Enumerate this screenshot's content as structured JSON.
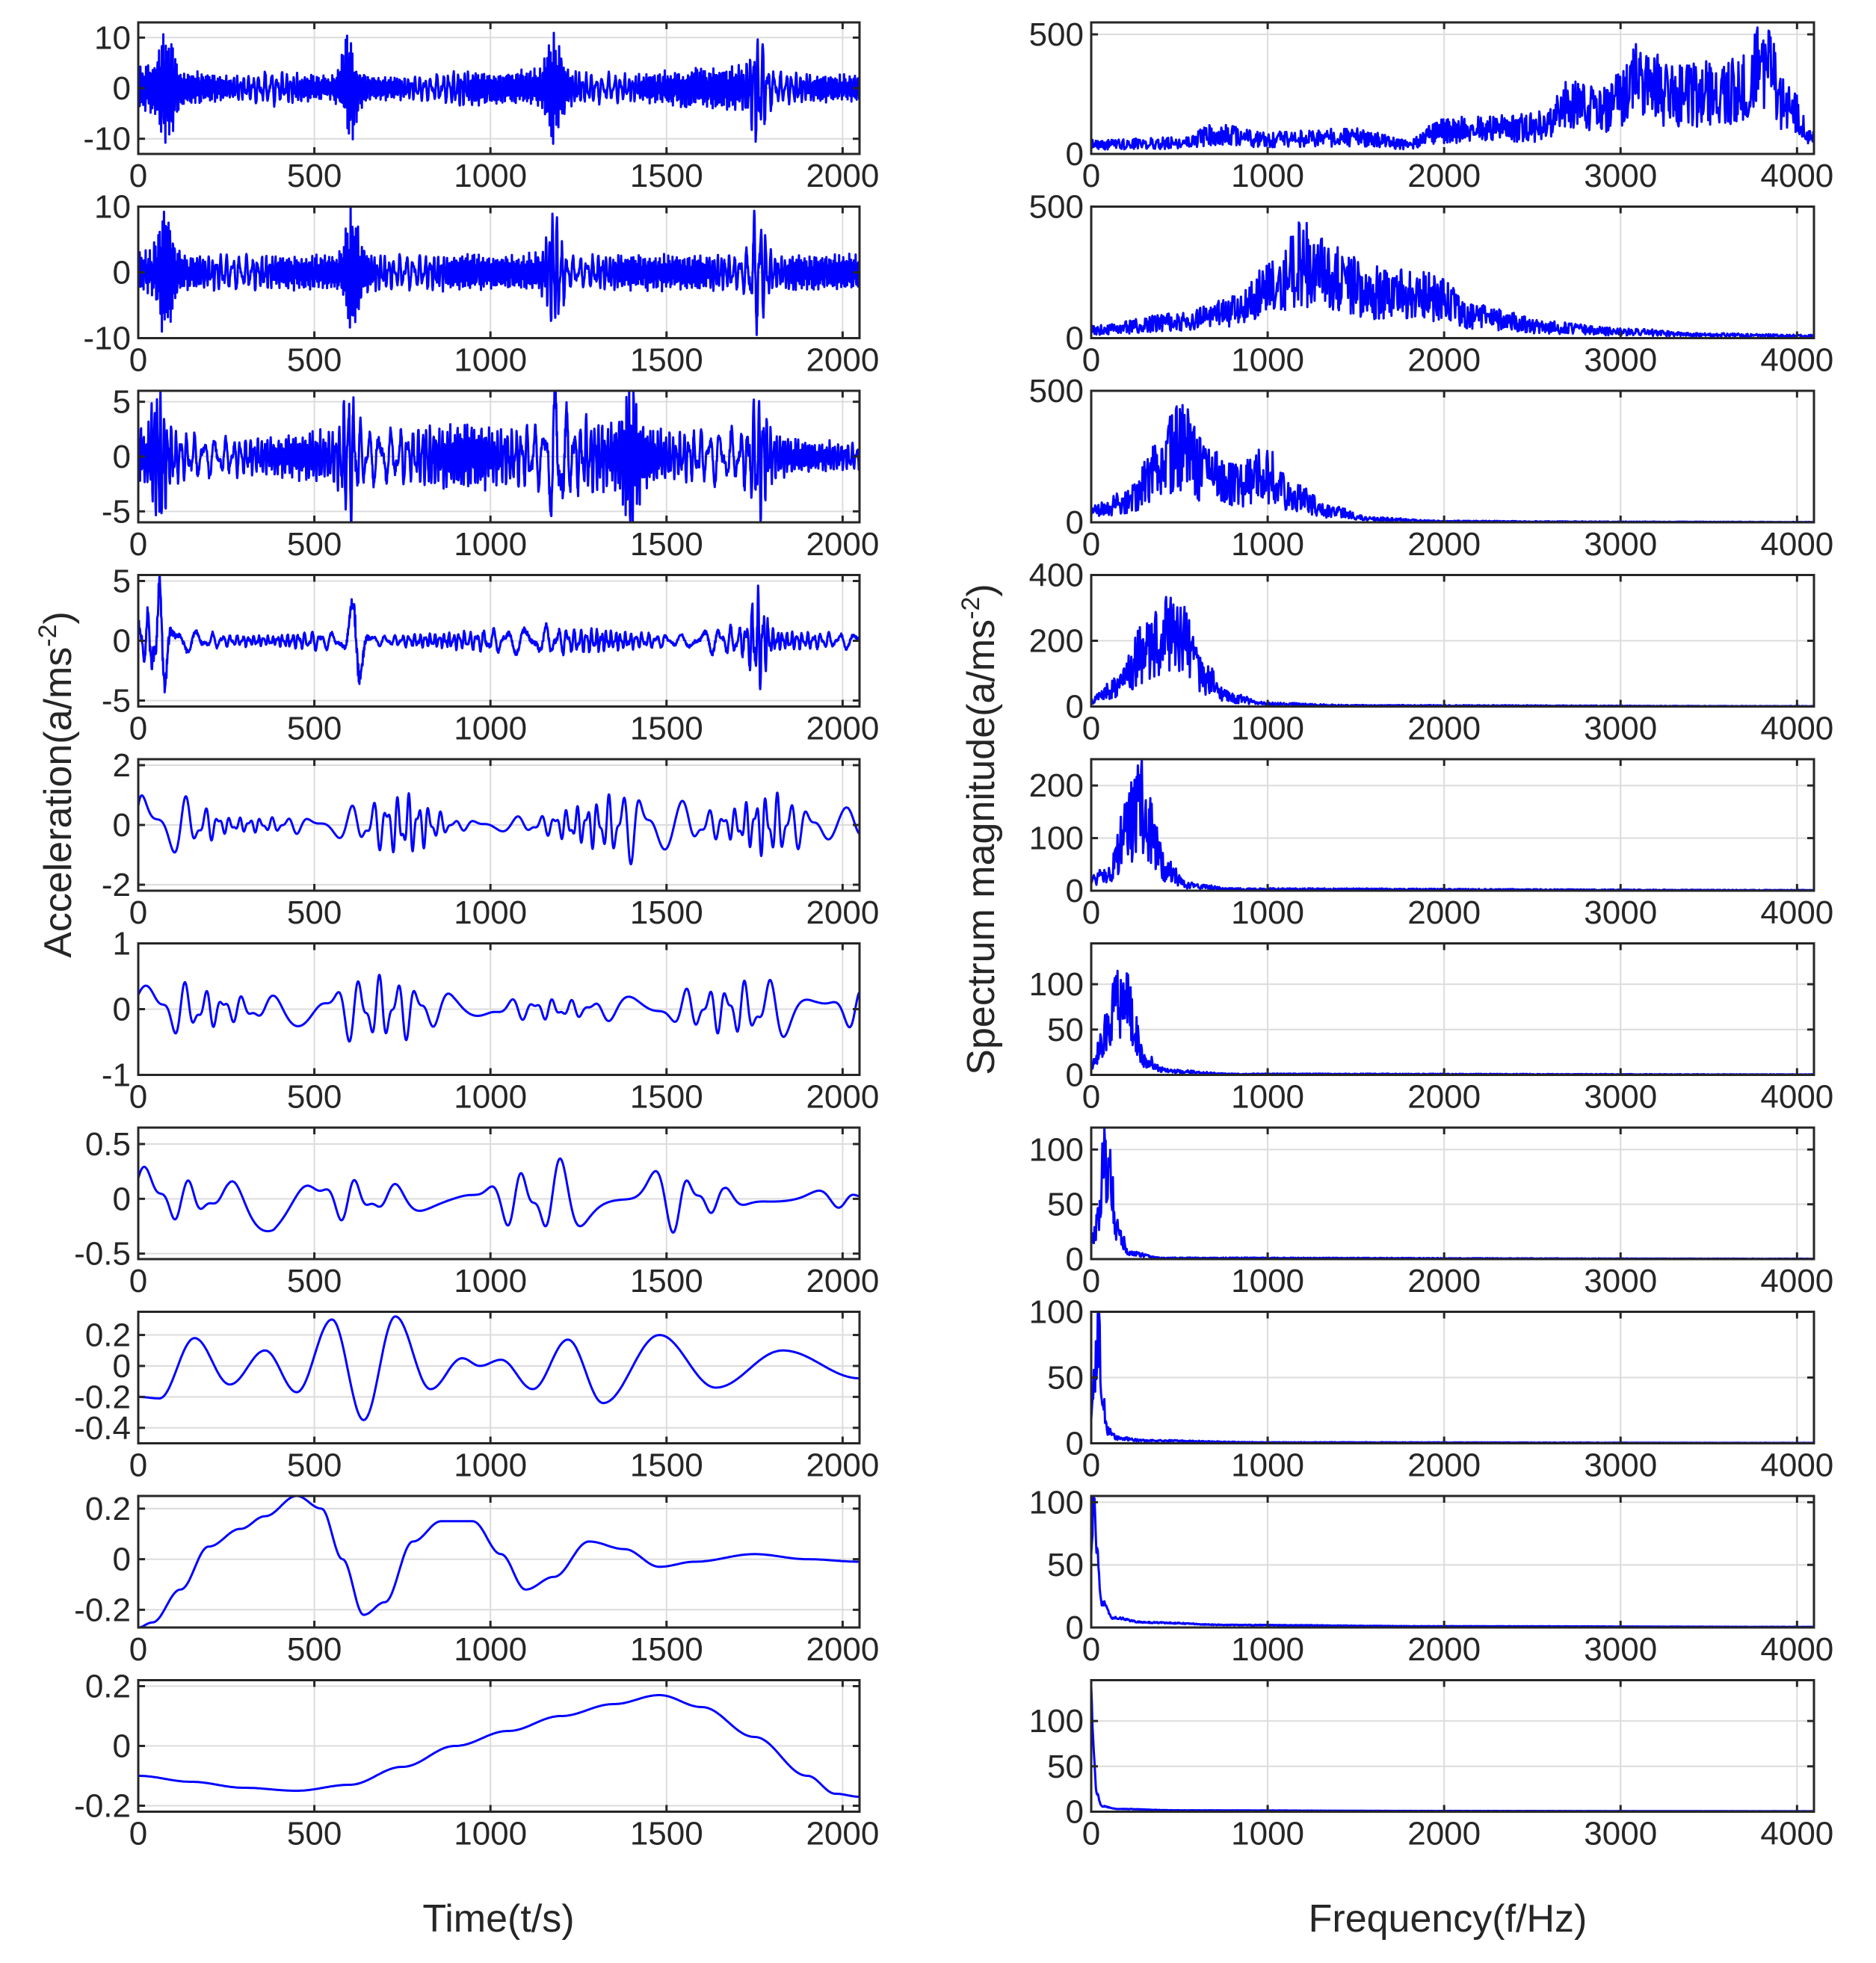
{
  "figure": {
    "left_ylabel": "Acceleration(a/ms",
    "left_ylabel_sup": "-2",
    "left_ylabel_tail": ")",
    "right_ylabel": "Spectrum magnitude(a/ms",
    "right_ylabel_sup": "-2",
    "right_ylabel_tail": ")",
    "left_xlabel": "Time(t/s)",
    "right_xlabel": "Frequency(f/Hz)",
    "line_color": "#0000ff",
    "grid": true
  },
  "chart_data": [
    {
      "type": "line",
      "column": "time",
      "row": 1,
      "xlim": [
        0,
        2048
      ],
      "ylim": [
        -13,
        13
      ],
      "yticks": [
        -10,
        0,
        10
      ],
      "xticks": [
        0,
        500,
        1000,
        1500,
        2000
      ],
      "amp": [
        6,
        4,
        2.5,
        4,
        2.5,
        3,
        2.5,
        4,
        3.5,
        4,
        3.5,
        3,
        4,
        5,
        4,
        3
      ],
      "burst_center": [
        80,
        600,
        1180,
        1760
      ],
      "burst_amp": 9.5,
      "freq": 0.22
    },
    {
      "type": "line",
      "column": "time",
      "row": 2,
      "xlim": [
        0,
        2048
      ],
      "ylim": [
        -10,
        10
      ],
      "yticks": [
        -10,
        0,
        10
      ],
      "xticks": [
        0,
        500,
        1000,
        1500,
        2000
      ],
      "amp": [
        4,
        3,
        3,
        3,
        3,
        3,
        3,
        3,
        3,
        3,
        3,
        3,
        3,
        3,
        3,
        3
      ],
      "burst_center": [
        80,
        610,
        1180,
        1760
      ],
      "burst_amp": 8.5,
      "freq": 0.2
    },
    {
      "type": "line",
      "column": "time",
      "row": 3,
      "xlim": [
        0,
        2048
      ],
      "ylim": [
        -6,
        6
      ],
      "yticks": [
        -5,
        0,
        5
      ],
      "xticks": [
        0,
        500,
        1000,
        1500,
        2000
      ],
      "amp": [
        3,
        2.5,
        2,
        2,
        2.5,
        3,
        3,
        3.5,
        3,
        3.5,
        4,
        3,
        2.5,
        3,
        2.5,
        1.5
      ],
      "burst_center": [
        60,
        600,
        1190,
        1400,
        1760
      ],
      "burst_amp": 5,
      "freq": 0.12
    },
    {
      "type": "line",
      "column": "time",
      "row": 4,
      "xlim": [
        0,
        2048
      ],
      "ylim": [
        -5.5,
        5.5
      ],
      "yticks": [
        -5,
        0,
        5
      ],
      "xticks": [
        0,
        500,
        1000,
        1500,
        2000
      ],
      "amp": [
        2.5,
        1.2,
        0.6,
        0.5,
        1,
        0.5,
        0.6,
        0.8,
        1.2,
        1.5,
        1.2,
        0.8,
        0.6,
        1.5,
        1,
        0.8
      ],
      "burst_center": [
        60,
        620,
        1760
      ],
      "burst_amp": 4.5,
      "freq": 0.06
    },
    {
      "type": "line",
      "column": "time",
      "row": 5,
      "xlim": [
        0,
        2048
      ],
      "ylim": [
        -2.2,
        2.2
      ],
      "yticks": [
        -2,
        0,
        2
      ],
      "xticks": [
        0,
        500,
        1000,
        1500,
        2000
      ],
      "amp": [
        1.9,
        1.2,
        0.3,
        0.3,
        0.4,
        0.9,
        1.3,
        0.2,
        0.3,
        0.4,
        0.9,
        1.6,
        1,
        0.5,
        1.4,
        0.7
      ],
      "burst_center": [],
      "burst_amp": 0,
      "freq": 0.028
    },
    {
      "type": "line",
      "column": "time",
      "row": 6,
      "xlim": [
        0,
        2048
      ],
      "ylim": [
        -1,
        1
      ],
      "yticks": [
        -1,
        0,
        1
      ],
      "xticks": [
        0,
        500,
        1000,
        1500,
        2000
      ],
      "amp": [
        0.7,
        0.5,
        0.25,
        0.25,
        0.45,
        0.65,
        0.55,
        0.25,
        0.2,
        0.2,
        0.15,
        0.3,
        0.35,
        0.45,
        0.6,
        0.35
      ],
      "burst_center": [],
      "burst_amp": 0,
      "freq": 0.016
    },
    {
      "type": "line",
      "column": "time",
      "row": 7,
      "xlim": [
        0,
        2048
      ],
      "ylim": [
        -0.55,
        0.65
      ],
      "yticks": [
        -0.5,
        0,
        0.5
      ],
      "xticks": [
        0,
        500,
        1000,
        1500,
        2000
      ],
      "amp": [
        0.6,
        0.2,
        0.2,
        0.4,
        0.3,
        0.2,
        0.15,
        0.15,
        0.25,
        0.45,
        0.4,
        0.45,
        0.35,
        0.12,
        0.12,
        0.1
      ],
      "burst_center": [],
      "burst_amp": 0,
      "freq": 0.0085
    },
    {
      "type": "line",
      "column": "time",
      "row": 8,
      "xlim": [
        0,
        2048
      ],
      "ylim": [
        -0.5,
        0.35
      ],
      "yticks": [
        -0.4,
        -0.2,
        0,
        0.2
      ],
      "ytick_labels": [
        "-0.4",
        "-0.2",
        "0",
        "0.2"
      ],
      "xticks": [
        0,
        500,
        1000,
        1500,
        2000
      ],
      "points": [
        [
          0,
          -0.2
        ],
        [
          60,
          -0.21
        ],
        [
          160,
          0.18
        ],
        [
          260,
          -0.12
        ],
        [
          360,
          0.1
        ],
        [
          450,
          -0.17
        ],
        [
          550,
          0.3
        ],
        [
          640,
          -0.35
        ],
        [
          730,
          0.32
        ],
        [
          830,
          -0.15
        ],
        [
          920,
          0.05
        ],
        [
          970,
          0.0
        ],
        [
          1030,
          0.04
        ],
        [
          1120,
          -0.15
        ],
        [
          1220,
          0.17
        ],
        [
          1320,
          -0.24
        ],
        [
          1480,
          0.2
        ],
        [
          1640,
          -0.14
        ],
        [
          1830,
          0.1
        ],
        [
          2048,
          -0.08
        ]
      ]
    },
    {
      "type": "line",
      "column": "time",
      "row": 9,
      "xlim": [
        0,
        2048
      ],
      "ylim": [
        -0.27,
        0.25
      ],
      "yticks": [
        -0.2,
        0,
        0.2
      ],
      "xticks": [
        0,
        500,
        1000,
        1500,
        2000
      ],
      "points": [
        [
          0,
          -0.27
        ],
        [
          40,
          -0.25
        ],
        [
          120,
          -0.12
        ],
        [
          200,
          0.05
        ],
        [
          290,
          0.12
        ],
        [
          360,
          0.17
        ],
        [
          450,
          0.25
        ],
        [
          520,
          0.2
        ],
        [
          580,
          0.0
        ],
        [
          640,
          -0.22
        ],
        [
          700,
          -0.17
        ],
        [
          780,
          0.07
        ],
        [
          860,
          0.15
        ],
        [
          950,
          0.15
        ],
        [
          1030,
          0.02
        ],
        [
          1100,
          -0.12
        ],
        [
          1180,
          -0.07
        ],
        [
          1280,
          0.07
        ],
        [
          1380,
          0.04
        ],
        [
          1480,
          -0.03
        ],
        [
          1580,
          -0.01
        ],
        [
          1750,
          0.02
        ],
        [
          1900,
          0.0
        ],
        [
          2048,
          -0.01
        ]
      ]
    },
    {
      "type": "line",
      "column": "time",
      "row": 10,
      "xlim": [
        0,
        2048
      ],
      "ylim": [
        -0.22,
        0.22
      ],
      "yticks": [
        -0.2,
        0,
        0.2
      ],
      "xticks": [
        0,
        500,
        1000,
        1500,
        2000
      ],
      "points": [
        [
          0,
          -0.1
        ],
        [
          150,
          -0.12
        ],
        [
          300,
          -0.14
        ],
        [
          450,
          -0.15
        ],
        [
          600,
          -0.13
        ],
        [
          750,
          -0.07
        ],
        [
          900,
          0.0
        ],
        [
          1050,
          0.05
        ],
        [
          1200,
          0.1
        ],
        [
          1350,
          0.14
        ],
        [
          1480,
          0.17
        ],
        [
          1600,
          0.13
        ],
        [
          1750,
          0.03
        ],
        [
          1900,
          -0.1
        ],
        [
          1980,
          -0.16
        ],
        [
          2048,
          -0.17
        ]
      ]
    },
    {
      "type": "line",
      "column": "frequency",
      "row": 1,
      "xlim": [
        0,
        4096
      ],
      "ylim": [
        0,
        550
      ],
      "yticks": [
        0,
        500
      ],
      "xticks": [
        0,
        1000,
        2000,
        3000,
        4000
      ],
      "envelope": [
        [
          0,
          40
        ],
        [
          500,
          45
        ],
        [
          700,
          80
        ],
        [
          1000,
          60
        ],
        [
          1500,
          70
        ],
        [
          1800,
          40
        ],
        [
          2000,
          100
        ],
        [
          2500,
          110
        ],
        [
          2700,
          200
        ],
        [
          2900,
          180
        ],
        [
          3100,
          300
        ],
        [
          3300,
          250
        ],
        [
          3600,
          250
        ],
        [
          3800,
          380
        ],
        [
          3950,
          200
        ],
        [
          4096,
          60
        ]
      ],
      "noise": 0.55
    },
    {
      "type": "line",
      "column": "frequency",
      "row": 2,
      "xlim": [
        0,
        4096
      ],
      "ylim": [
        0,
        500
      ],
      "yticks": [
        0,
        500
      ],
      "xticks": [
        0,
        1000,
        2000,
        3000,
        4000
      ],
      "envelope": [
        [
          0,
          30
        ],
        [
          500,
          60
        ],
        [
          800,
          100
        ],
        [
          1000,
          180
        ],
        [
          1200,
          280
        ],
        [
          1400,
          220
        ],
        [
          1600,
          180
        ],
        [
          1900,
          160
        ],
        [
          2200,
          80
        ],
        [
          2600,
          40
        ],
        [
          3000,
          25
        ],
        [
          3500,
          12
        ],
        [
          4096,
          8
        ]
      ],
      "noise": 0.6
    },
    {
      "type": "line",
      "column": "frequency",
      "row": 3,
      "xlim": [
        0,
        4096
      ],
      "ylim": [
        0,
        500
      ],
      "yticks": [
        0,
        500
      ],
      "xticks": [
        0,
        1000,
        2000,
        3000,
        4000
      ],
      "envelope": [
        [
          0,
          40
        ],
        [
          200,
          80
        ],
        [
          400,
          220
        ],
        [
          500,
          300
        ],
        [
          650,
          190
        ],
        [
          800,
          140
        ],
        [
          1000,
          180
        ],
        [
          1150,
          100
        ],
        [
          1350,
          40
        ],
        [
          1600,
          12
        ],
        [
          2000,
          4
        ],
        [
          3000,
          2
        ],
        [
          4096,
          1
        ]
      ],
      "noise": 0.6
    },
    {
      "type": "line",
      "column": "frequency",
      "row": 4,
      "xlim": [
        0,
        4096
      ],
      "ylim": [
        0,
        400
      ],
      "yticks": [
        0,
        200,
        400
      ],
      "xticks": [
        0,
        1000,
        2000,
        3000,
        4000
      ],
      "envelope": [
        [
          0,
          20
        ],
        [
          150,
          60
        ],
        [
          300,
          160
        ],
        [
          400,
          220
        ],
        [
          500,
          200
        ],
        [
          650,
          80
        ],
        [
          800,
          25
        ],
        [
          1000,
          8
        ],
        [
          1500,
          3
        ],
        [
          4096,
          1
        ]
      ],
      "noise": 0.6
    },
    {
      "type": "line",
      "column": "frequency",
      "row": 5,
      "xlim": [
        0,
        4096
      ],
      "ylim": [
        0,
        250
      ],
      "yticks": [
        0,
        100,
        200
      ],
      "xticks": [
        0,
        1000,
        2000,
        3000,
        4000
      ],
      "envelope": [
        [
          0,
          20
        ],
        [
          100,
          30
        ],
        [
          200,
          120
        ],
        [
          280,
          160
        ],
        [
          350,
          110
        ],
        [
          420,
          40
        ],
        [
          550,
          10
        ],
        [
          800,
          3
        ],
        [
          4096,
          1
        ]
      ],
      "noise": 0.6
    },
    {
      "type": "line",
      "column": "frequency",
      "row": 6,
      "xlim": [
        0,
        4096
      ],
      "ylim": [
        0,
        145
      ],
      "yticks": [
        0,
        50,
        100
      ],
      "xticks": [
        0,
        1000,
        2000,
        3000,
        4000
      ],
      "envelope": [
        [
          0,
          15
        ],
        [
          60,
          30
        ],
        [
          100,
          60
        ],
        [
          160,
          80
        ],
        [
          200,
          90
        ],
        [
          240,
          50
        ],
        [
          300,
          15
        ],
        [
          450,
          4
        ],
        [
          800,
          1
        ],
        [
          4096,
          0.5
        ]
      ],
      "noise": 0.55
    },
    {
      "type": "line",
      "column": "frequency",
      "row": 7,
      "xlim": [
        0,
        4096
      ],
      "ylim": [
        0,
        120
      ],
      "yticks": [
        0,
        50,
        100
      ],
      "xticks": [
        0,
        1000,
        2000,
        3000,
        4000
      ],
      "envelope": [
        [
          0,
          15
        ],
        [
          40,
          35
        ],
        [
          70,
          100
        ],
        [
          110,
          70
        ],
        [
          150,
          25
        ],
        [
          220,
          5
        ],
        [
          400,
          1
        ],
        [
          4096,
          0.3
        ]
      ],
      "noise": 0.45
    },
    {
      "type": "line",
      "column": "frequency",
      "row": 8,
      "xlim": [
        0,
        4096
      ],
      "ylim": [
        0,
        100
      ],
      "yticks": [
        0,
        50,
        100
      ],
      "xticks": [
        0,
        1000,
        2000,
        3000,
        4000
      ],
      "envelope": [
        [
          0,
          20
        ],
        [
          25,
          60
        ],
        [
          40,
          85
        ],
        [
          60,
          40
        ],
        [
          90,
          10
        ],
        [
          150,
          4
        ],
        [
          300,
          2
        ],
        [
          1000,
          0.7
        ],
        [
          4096,
          0.3
        ]
      ],
      "noise": 0.35
    },
    {
      "type": "line",
      "column": "frequency",
      "row": 9,
      "xlim": [
        0,
        4096
      ],
      "ylim": [
        0,
        105
      ],
      "yticks": [
        0,
        50,
        100
      ],
      "xticks": [
        0,
        1000,
        2000,
        3000,
        4000
      ],
      "envelope": [
        [
          0,
          60
        ],
        [
          15,
          100
        ],
        [
          30,
          60
        ],
        [
          60,
          20
        ],
        [
          120,
          8
        ],
        [
          300,
          4
        ],
        [
          800,
          2
        ],
        [
          2000,
          1
        ],
        [
          4096,
          0.5
        ]
      ],
      "noise": 0.15
    },
    {
      "type": "line",
      "column": "frequency",
      "row": 10,
      "xlim": [
        0,
        4096
      ],
      "ylim": [
        0,
        145
      ],
      "yticks": [
        0,
        50,
        100
      ],
      "xticks": [
        0,
        1000,
        2000,
        3000,
        4000
      ],
      "envelope": [
        [
          0,
          140
        ],
        [
          10,
          80
        ],
        [
          30,
          20
        ],
        [
          60,
          6
        ],
        [
          150,
          3
        ],
        [
          500,
          1.5
        ],
        [
          2000,
          0.8
        ],
        [
          4096,
          0.5
        ]
      ],
      "noise": 0.1
    }
  ]
}
